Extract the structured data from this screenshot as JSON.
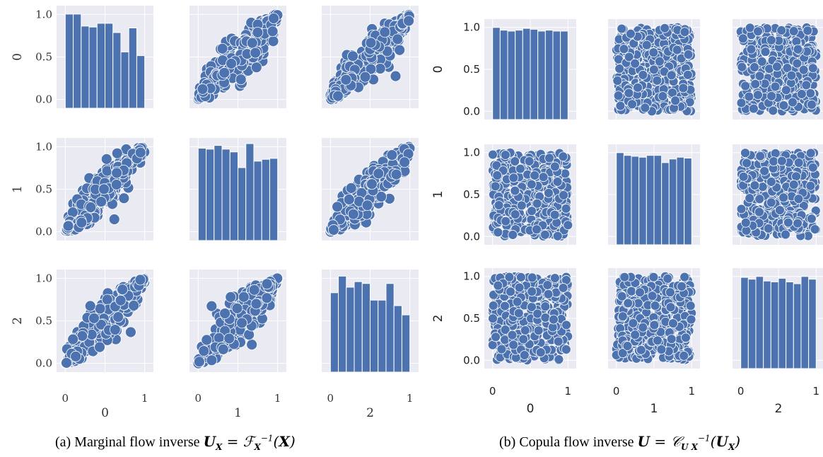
{
  "panels": [
    {
      "id": "a",
      "variables": [
        "0",
        "1",
        "2"
      ],
      "caption_text": "(a) Marginal flow inverse",
      "tick_font": "serif"
    },
    {
      "id": "b",
      "variables": [
        "0",
        "1",
        "2"
      ],
      "caption_text": "(b) Copula flow inverse",
      "tick_font": "sans"
    }
  ],
  "chart_data": [
    {
      "type": "pairplot",
      "panel": "a",
      "variables": [
        "0",
        "1",
        "2"
      ],
      "axis_range": [
        0,
        1
      ],
      "y_ticks": [
        "0.0",
        "0.5",
        "1.0"
      ],
      "x_ticks": [
        "0",
        "1"
      ],
      "grid": true,
      "background_color": "#eaeaf2",
      "mark_color": "#4c72b0",
      "scatter_pattern": "strongly positively correlated (≈0.9)",
      "histograms": {
        "0": [
          1.02,
          1.02,
          0.89,
          0.88,
          0.92,
          0.92,
          0.82,
          0.61,
          0.87,
          0.57
        ],
        "1": [
          1.0,
          0.99,
          1.03,
          0.99,
          0.96,
          0.79,
          1.05,
          0.86,
          0.88,
          0.89
        ],
        "2": [
          0.86,
          1.04,
          0.92,
          0.98,
          0.96,
          0.78,
          0.78,
          0.96,
          0.72,
          0.62
        ]
      }
    },
    {
      "type": "pairplot",
      "panel": "b",
      "variables": [
        "0",
        "1",
        "2"
      ],
      "axis_range": [
        0,
        1
      ],
      "y_ticks": [
        "0.0",
        "0.5",
        "1.0"
      ],
      "x_ticks": [
        "0",
        "1"
      ],
      "grid": true,
      "background_color": "#eaeaf2",
      "mark_color": "#4c72b0",
      "scatter_pattern": "uniform, independent",
      "histograms": {
        "0": [
          1.02,
          0.99,
          0.98,
          0.99,
          1.01,
          1.0,
          0.98,
          0.99,
          0.98,
          0.98
        ],
        "1": [
          1.02,
          0.99,
          0.98,
          0.97,
          0.99,
          0.99,
          0.91,
          0.95,
          0.97,
          0.96
        ],
        "2": [
          1.01,
          0.99,
          1.02,
          0.97,
          0.96,
          1.0,
          0.96,
          0.94,
          1.02,
          0.99
        ]
      }
    }
  ]
}
